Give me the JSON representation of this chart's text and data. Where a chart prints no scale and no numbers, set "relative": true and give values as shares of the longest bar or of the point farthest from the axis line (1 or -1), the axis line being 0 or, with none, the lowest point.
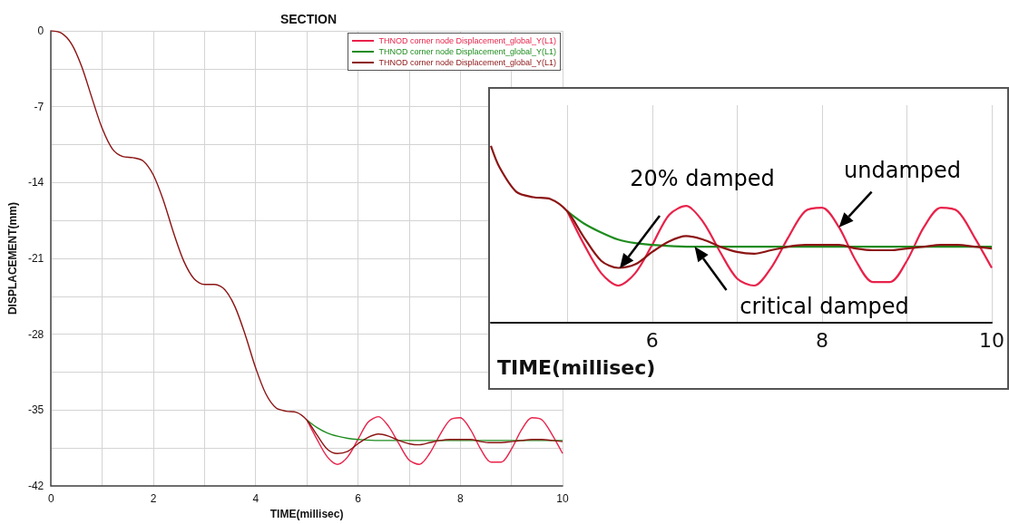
{
  "chart_data": [
    {
      "type": "line",
      "title": "SECTION",
      "xlabel": "TIME(millisec)",
      "ylabel": "DISPLACEMENT(mm)",
      "xlim": [
        0,
        10
      ],
      "ylim": [
        -42,
        0
      ],
      "xticks": [
        0,
        {
          "value": 1,
          "label": null
        },
        2,
        {
          "value": 3,
          "label": null
        },
        4,
        {
          "value": 5,
          "label": null
        },
        6,
        {
          "value": 7,
          "label": null
        },
        8,
        {
          "value": 9,
          "label": null
        },
        10
      ],
      "yticks": [
        -42,
        {
          "value": -38.5,
          "label": null
        },
        -35,
        {
          "value": -31.5,
          "label": null
        },
        -28,
        {
          "value": -24.5,
          "label": null
        },
        -21,
        {
          "value": -17.5,
          "label": null
        },
        -14,
        {
          "value": -10.5,
          "label": null
        },
        -7,
        {
          "value": -3.5,
          "label": null
        },
        0
      ],
      "grid": true,
      "legend": "top right",
      "series": [
        {
          "name": "THNOD corner node Displacement_global_Y(L1)",
          "color": "#e8224a",
          "x": [
            5.0,
            5.2,
            5.4,
            5.6,
            5.8,
            6.0,
            6.2,
            6.4,
            6.6,
            6.8,
            7.0,
            7.2,
            7.4,
            7.6,
            7.8,
            8.0,
            8.2,
            8.4,
            8.6,
            8.8,
            9.0,
            9.2,
            9.4,
            9.6,
            9.8,
            10.0
          ],
          "values": [
            -35.9,
            -37.7,
            -39.3,
            -40.0,
            -39.3,
            -37.7,
            -36.1,
            -35.6,
            -36.5,
            -38.1,
            -39.6,
            -40.0,
            -39.0,
            -37.3,
            -35.9,
            -35.7,
            -36.8,
            -38.6,
            -39.8,
            -39.8,
            -38.6,
            -36.8,
            -35.7,
            -35.9,
            -37.3,
            -39.0
          ]
        },
        {
          "name": "THNOD corner node Displacement_global_Y(L1)",
          "color": "#1e8c1e",
          "x": [
            5.0,
            5.2,
            5.4,
            5.6,
            5.8,
            6.0,
            6.4,
            7.0,
            8.0,
            9.0,
            10.0
          ],
          "values": [
            -35.9,
            -36.6,
            -37.1,
            -37.4,
            -37.6,
            -37.7,
            -37.8,
            -37.8,
            -37.8,
            -37.8,
            -37.8
          ]
        },
        {
          "name": "THNOD corner node Displacement_global_Y(L1)",
          "color": "#8c1414",
          "x": [
            0,
            0.2,
            0.4,
            0.6,
            0.8,
            1.0,
            1.2,
            1.4,
            1.6,
            1.8,
            2.0,
            2.2,
            2.4,
            2.6,
            2.8,
            3.0,
            3.2,
            3.4,
            3.6,
            3.8,
            4.0,
            4.2,
            4.4,
            4.6,
            4.8,
            5.0,
            5.2,
            5.4,
            5.6,
            5.8,
            6.0,
            6.2,
            6.4,
            6.6,
            6.8,
            7.0,
            7.2,
            7.4,
            7.6,
            7.8,
            8.0,
            8.2,
            8.4,
            8.6,
            8.8,
            9.0,
            9.2,
            9.4,
            9.6,
            9.8,
            10.0
          ],
          "values": [
            0,
            -0.2,
            -1.2,
            -3.3,
            -6.2,
            -9.0,
            -10.9,
            -11.6,
            -11.7,
            -12.0,
            -13.3,
            -15.7,
            -18.7,
            -21.3,
            -22.9,
            -23.4,
            -23.4,
            -23.9,
            -25.5,
            -28.1,
            -31.1,
            -33.5,
            -34.8,
            -35.1,
            -35.2,
            -35.9,
            -37.3,
            -38.6,
            -39.0,
            -38.8,
            -38.1,
            -37.5,
            -37.2,
            -37.4,
            -37.8,
            -38.1,
            -38.2,
            -38.0,
            -37.8,
            -37.7,
            -37.7,
            -37.7,
            -37.9,
            -38.0,
            -38.0,
            -37.9,
            -37.8,
            -37.7,
            -37.7,
            -37.8,
            -37.9
          ]
        }
      ]
    },
    {
      "type": "line",
      "relative": true,
      "xlabel": "TIME(millisec)",
      "xlim": [
        4.1,
        10
      ],
      "xticks": [
        {
          "value": 5,
          "label": null
        },
        6,
        {
          "value": 7,
          "label": null
        },
        8,
        {
          "value": 9,
          "label": null
        },
        10
      ],
      "grid": "x",
      "tick_labels": "x",
      "annotations": [
        "20% damped",
        {
          "text": "undamped",
          "x": 8.2,
          "y": 0.54
        },
        {
          "text": "critical damped",
          "x": 6.5,
          "y": 0.43
        }
      ],
      "series": [
        {
          "color": "#e8224a",
          "x": [
            5.0,
            5.2,
            5.4,
            5.6,
            5.8,
            6.0,
            6.2,
            6.4,
            6.6,
            6.8,
            7.0,
            7.2,
            7.4,
            7.6,
            7.8,
            8.0,
            8.2,
            8.4,
            8.6,
            8.8,
            9.0,
            9.2,
            9.4,
            9.6,
            9.8,
            10.0
          ],
          "values": [
            0.63,
            0.44,
            0.28,
            0.21,
            0.28,
            0.44,
            0.61,
            0.66,
            0.57,
            0.4,
            0.25,
            0.21,
            0.31,
            0.48,
            0.63,
            0.65,
            0.54,
            0.35,
            0.23,
            0.23,
            0.35,
            0.54,
            0.65,
            0.63,
            0.48,
            0.31
          ]
        },
        {
          "color": "#1e8c1e",
          "x": [
            5.0,
            5.2,
            5.4,
            5.6,
            5.8,
            6.0,
            6.4,
            7.0,
            8.0,
            9.0,
            10.0
          ],
          "values": [
            0.63,
            0.56,
            0.51,
            0.47,
            0.45,
            0.44,
            0.43,
            0.43,
            0.43,
            0.43,
            0.43
          ]
        },
        {
          "color": "#8c1414",
          "x": [
            4.1,
            4.2,
            4.4,
            4.6,
            4.8,
            5.0,
            5.2,
            5.4,
            5.6,
            5.8,
            6.0,
            6.2,
            6.4,
            6.6,
            6.8,
            7.0,
            7.2,
            7.4,
            7.6,
            7.8,
            8.0,
            8.2,
            8.4,
            8.6,
            8.8,
            9.0,
            9.2,
            9.4,
            9.6,
            9.8,
            10.0
          ],
          "values": [
            1,
            0.88,
            0.74,
            0.71,
            0.7,
            0.63,
            0.48,
            0.35,
            0.31,
            0.33,
            0.4,
            0.46,
            0.49,
            0.47,
            0.43,
            0.4,
            0.39,
            0.41,
            0.43,
            0.44,
            0.44,
            0.44,
            0.42,
            0.41,
            0.41,
            0.42,
            0.43,
            0.44,
            0.44,
            0.43,
            0.42
          ]
        }
      ]
    }
  ]
}
